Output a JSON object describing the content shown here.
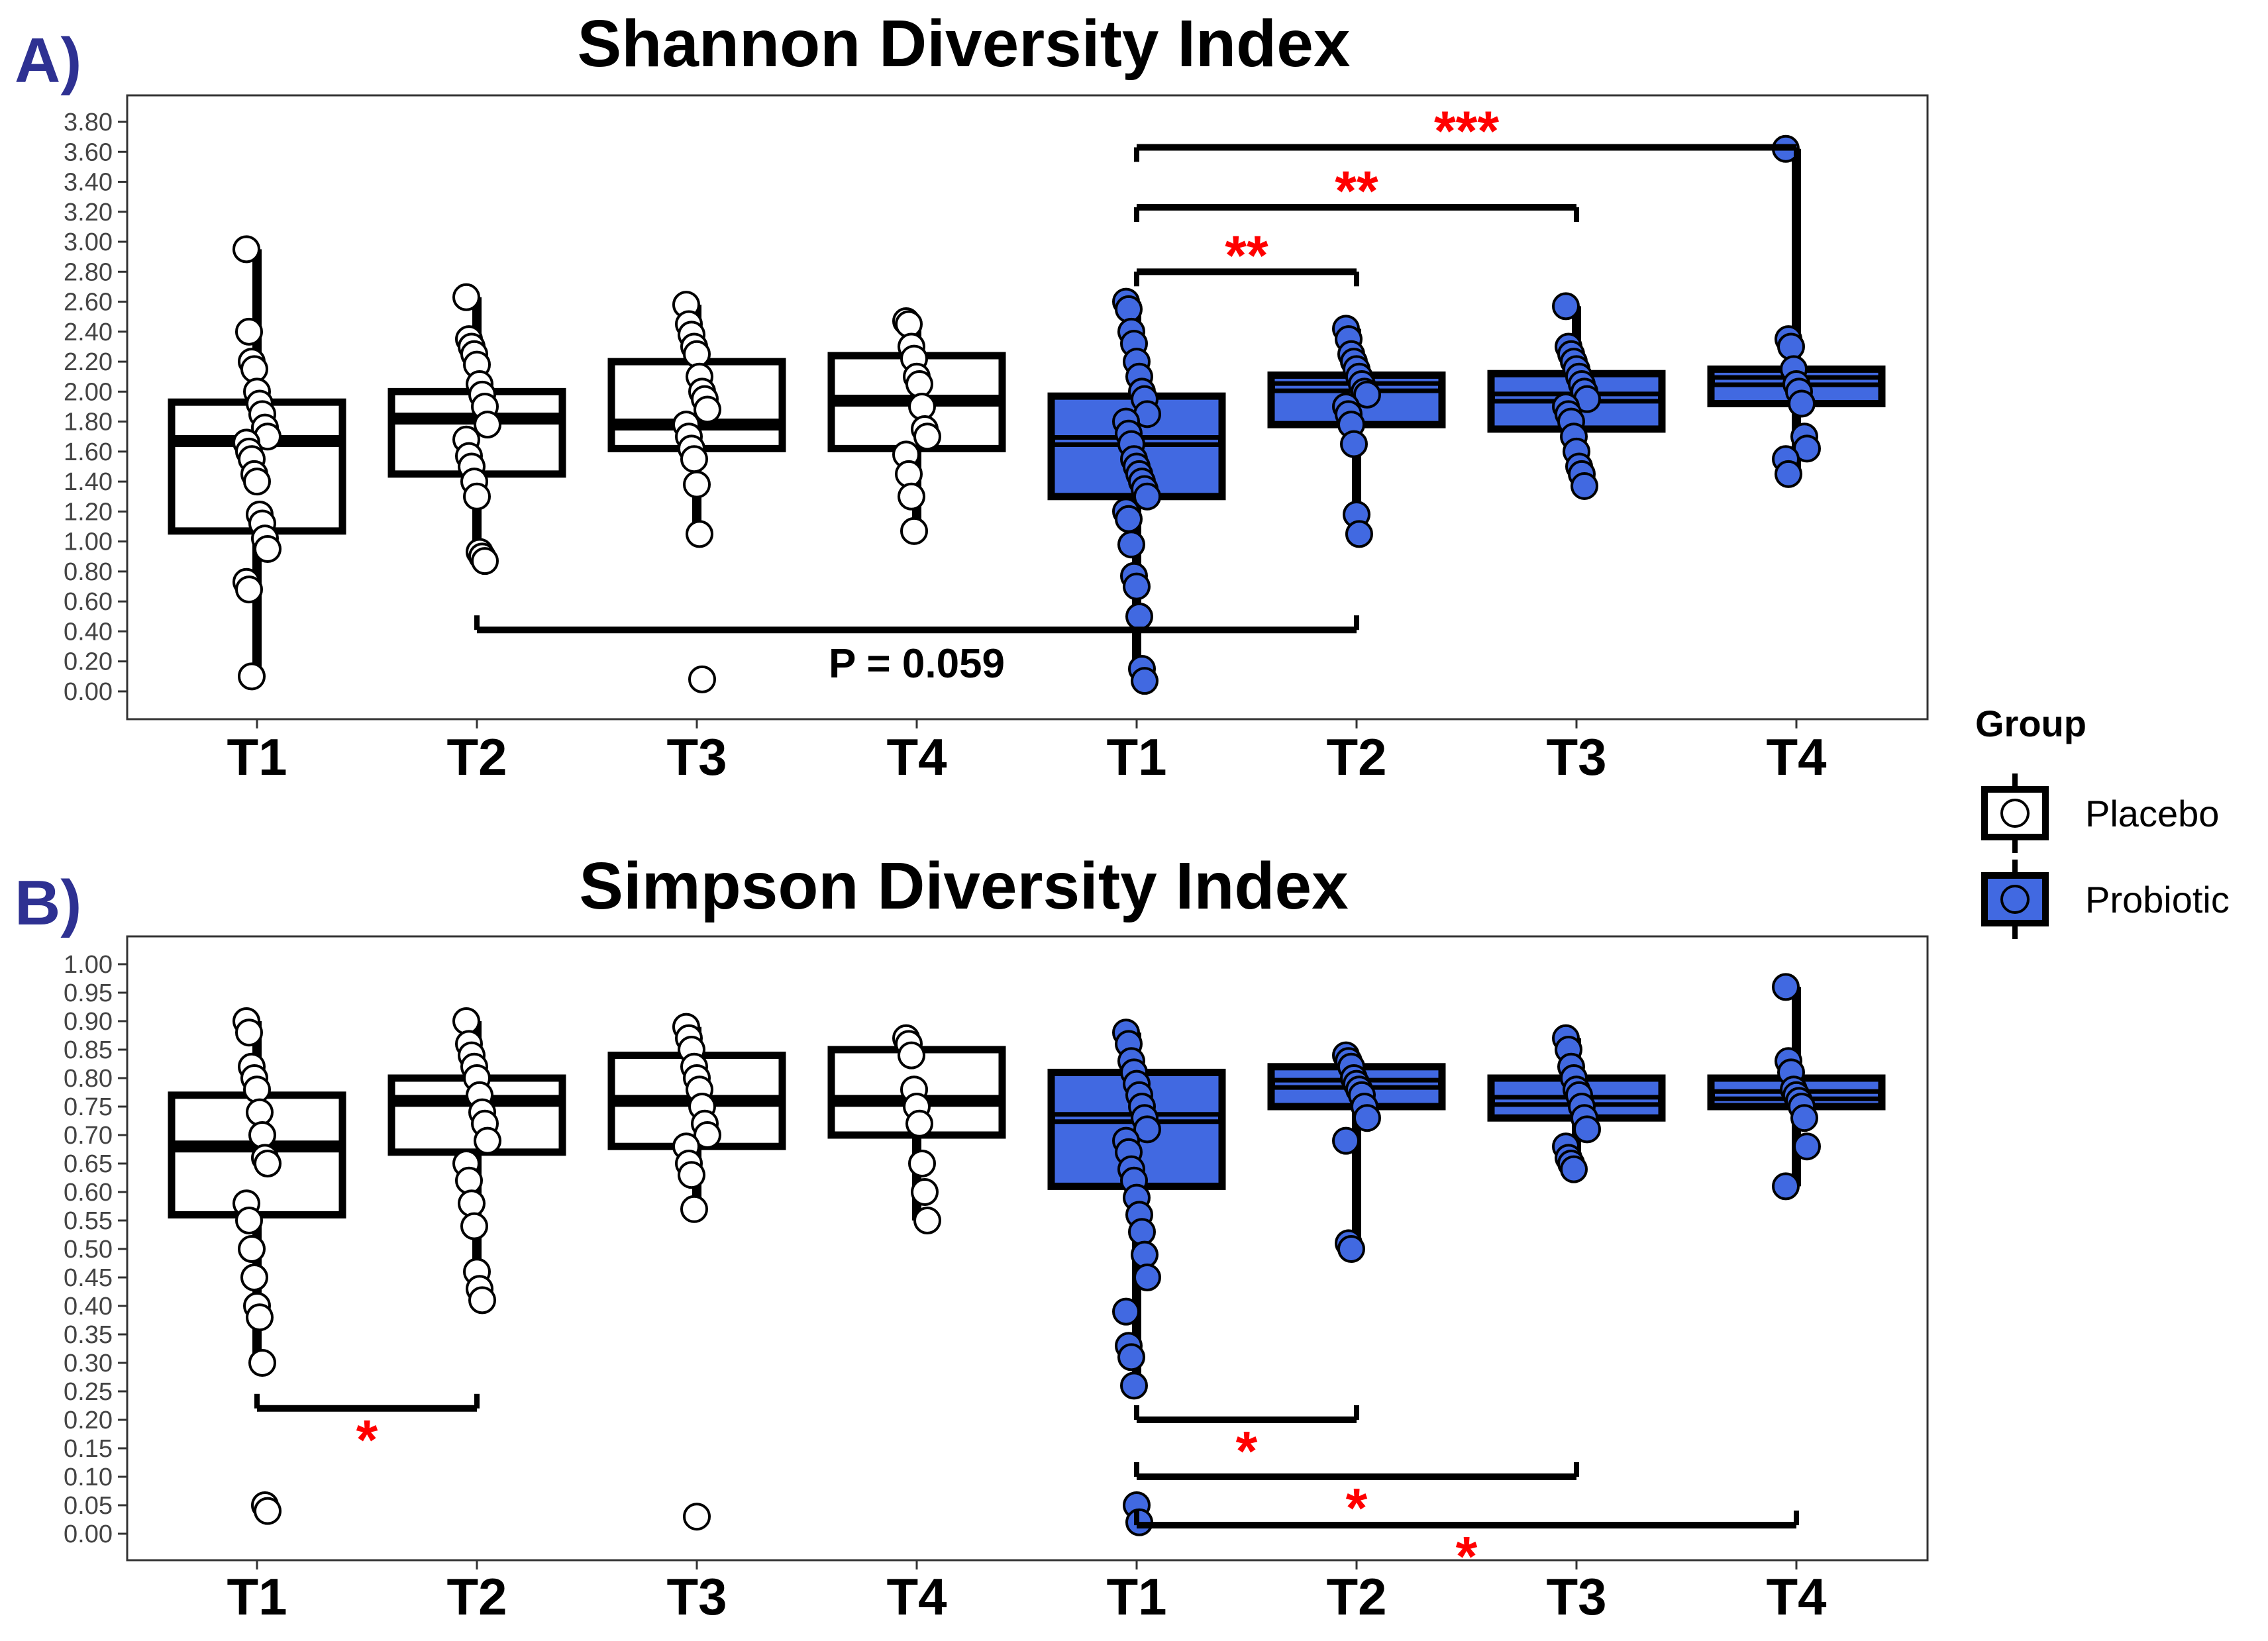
{
  "legend": {
    "title": "Group",
    "items": [
      {
        "label": "Placebo",
        "fill": "#ffffff"
      },
      {
        "label": "Probiotic",
        "fill": "#4169e1"
      }
    ]
  },
  "colors": {
    "placebo": "#ffffff",
    "probiotic": "#4169e1",
    "significance": "#ff0000",
    "panel_letter": "#2e3192"
  },
  "chart_data": [
    {
      "type": "box",
      "panel": "A)",
      "title": "Shannon Diversity Index",
      "ylim": [
        0,
        3.8
      ],
      "ytick_step": 0.2,
      "yticks": [
        "0.00",
        "0.20",
        "0.40",
        "0.60",
        "0.80",
        "1.00",
        "1.20",
        "1.40",
        "1.60",
        "1.80",
        "2.00",
        "2.20",
        "2.40",
        "2.60",
        "2.80",
        "3.00",
        "3.20",
        "3.40",
        "3.60",
        "3.80"
      ],
      "categories": [
        "T1",
        "T2",
        "T3",
        "T4",
        "T1",
        "T2",
        "T3",
        "T4"
      ],
      "groups": [
        "Placebo",
        "Placebo",
        "Placebo",
        "Placebo",
        "Probiotic",
        "Probiotic",
        "Probiotic",
        "Probiotic"
      ],
      "boxes": [
        {
          "q1": 1.07,
          "median": 1.67,
          "q3": 1.93,
          "wlo": 0.1,
          "whi": 2.95
        },
        {
          "q1": 1.45,
          "median": 1.82,
          "q3": 2.0,
          "wlo": 0.87,
          "whi": 2.63
        },
        {
          "q1": 1.62,
          "median": 1.78,
          "q3": 2.2,
          "wlo": 1.05,
          "whi": 2.58
        },
        {
          "q1": 1.62,
          "median": 1.94,
          "q3": 2.24,
          "wlo": 1.07,
          "whi": 2.47
        },
        {
          "q1": 1.3,
          "median": 1.67,
          "q3": 1.97,
          "wlo": 0.07,
          "whi": 2.6
        },
        {
          "q1": 1.78,
          "median": 2.03,
          "q3": 2.11,
          "wlo": 1.05,
          "whi": 2.42
        },
        {
          "q1": 1.75,
          "median": 1.96,
          "q3": 2.12,
          "wlo": 1.37,
          "whi": 2.57
        },
        {
          "q1": 1.92,
          "median": 2.07,
          "q3": 2.15,
          "wlo": 1.45,
          "whi": 3.62
        }
      ],
      "points": [
        [
          2.95,
          2.4,
          2.2,
          2.15,
          2.0,
          1.92,
          1.85,
          1.76,
          1.7,
          1.66,
          1.6,
          1.55,
          1.45,
          1.4,
          1.18,
          1.12,
          1.02,
          0.95,
          0.73,
          0.68,
          0.1
        ],
        [
          2.63,
          2.35,
          2.3,
          2.25,
          2.18,
          2.05,
          1.98,
          1.9,
          1.78,
          1.68,
          1.57,
          1.5,
          1.4,
          1.3,
          0.93,
          0.9,
          0.87
        ],
        [
          2.58,
          2.45,
          2.38,
          2.3,
          2.25,
          2.1,
          2.0,
          1.95,
          1.88,
          1.78,
          1.7,
          1.62,
          1.55,
          1.38,
          1.05,
          0.08
        ],
        [
          2.47,
          2.45,
          2.3,
          2.22,
          2.1,
          2.05,
          1.9,
          1.75,
          1.7,
          1.58,
          1.45,
          1.3,
          1.07
        ],
        [
          2.6,
          2.55,
          2.4,
          2.32,
          2.2,
          2.1,
          2.0,
          1.95,
          1.85,
          1.8,
          1.72,
          1.65,
          1.55,
          1.5,
          1.45,
          1.4,
          1.35,
          1.3,
          1.2,
          1.15,
          0.98,
          0.77,
          0.7,
          0.5,
          0.15,
          0.07
        ],
        [
          2.42,
          2.35,
          2.25,
          2.2,
          2.15,
          2.1,
          2.05,
          2.0,
          1.98,
          1.9,
          1.85,
          1.78,
          1.65,
          1.18,
          1.05
        ],
        [
          2.57,
          2.3,
          2.25,
          2.2,
          2.15,
          2.1,
          2.05,
          2.0,
          1.95,
          1.9,
          1.85,
          1.8,
          1.7,
          1.6,
          1.5,
          1.45,
          1.37
        ],
        [
          3.62,
          2.35,
          2.3,
          2.15,
          2.05,
          2.0,
          1.92,
          1.7,
          1.62,
          1.55,
          1.45
        ]
      ],
      "brackets": [
        {
          "from": 4,
          "to": 7,
          "y": 3.63,
          "label": "***"
        },
        {
          "from": 4,
          "to": 6,
          "y": 3.23,
          "label": "**"
        },
        {
          "from": 4,
          "to": 5,
          "y": 2.8,
          "label": "**"
        },
        {
          "from": 1,
          "to": 5,
          "y": 0.41,
          "label": "P = 0.059",
          "below": true
        }
      ]
    },
    {
      "type": "box",
      "panel": "B)",
      "title": "Simpson Diversity Index",
      "ylim": [
        0,
        1.0
      ],
      "ytick_step": 0.05,
      "yticks": [
        "0.00",
        "0.05",
        "0.10",
        "0.15",
        "0.20",
        "0.25",
        "0.30",
        "0.35",
        "0.40",
        "0.45",
        "0.50",
        "0.55",
        "0.60",
        "0.65",
        "0.70",
        "0.75",
        "0.80",
        "0.85",
        "0.90",
        "0.95",
        "1.00"
      ],
      "categories": [
        "T1",
        "T2",
        "T3",
        "T4",
        "T1",
        "T2",
        "T3",
        "T4"
      ],
      "groups": [
        "Placebo",
        "Placebo",
        "Placebo",
        "Placebo",
        "Probiotic",
        "Probiotic",
        "Probiotic",
        "Probiotic"
      ],
      "boxes": [
        {
          "q1": 0.56,
          "median": 0.68,
          "q3": 0.77,
          "wlo": 0.3,
          "whi": 0.9
        },
        {
          "q1": 0.67,
          "median": 0.76,
          "q3": 0.8,
          "wlo": 0.41,
          "whi": 0.9
        },
        {
          "q1": 0.68,
          "median": 0.76,
          "q3": 0.84,
          "wlo": 0.57,
          "whi": 0.89
        },
        {
          "q1": 0.7,
          "median": 0.76,
          "q3": 0.85,
          "wlo": 0.55,
          "whi": 0.87
        },
        {
          "q1": 0.61,
          "median": 0.73,
          "q3": 0.81,
          "wlo": 0.26,
          "whi": 0.88
        },
        {
          "q1": 0.75,
          "median": 0.79,
          "q3": 0.82,
          "wlo": 0.5,
          "whi": 0.84
        },
        {
          "q1": 0.73,
          "median": 0.76,
          "q3": 0.8,
          "wlo": 0.64,
          "whi": 0.87
        },
        {
          "q1": 0.75,
          "median": 0.77,
          "q3": 0.8,
          "wlo": 0.61,
          "whi": 0.96
        }
      ],
      "points": [
        [
          0.9,
          0.88,
          0.82,
          0.8,
          0.78,
          0.74,
          0.7,
          0.66,
          0.65,
          0.58,
          0.55,
          0.5,
          0.45,
          0.4,
          0.38,
          0.3,
          0.05,
          0.04
        ],
        [
          0.9,
          0.86,
          0.84,
          0.82,
          0.8,
          0.77,
          0.74,
          0.72,
          0.69,
          0.65,
          0.62,
          0.58,
          0.54,
          0.46,
          0.43,
          0.41
        ],
        [
          0.89,
          0.87,
          0.85,
          0.82,
          0.8,
          0.78,
          0.75,
          0.72,
          0.7,
          0.68,
          0.65,
          0.63,
          0.57,
          0.03
        ],
        [
          0.87,
          0.86,
          0.84,
          0.78,
          0.75,
          0.72,
          0.65,
          0.6,
          0.55
        ],
        [
          0.88,
          0.86,
          0.83,
          0.81,
          0.79,
          0.77,
          0.75,
          0.73,
          0.71,
          0.69,
          0.67,
          0.64,
          0.62,
          0.59,
          0.56,
          0.53,
          0.49,
          0.45,
          0.39,
          0.33,
          0.31,
          0.26,
          0.05,
          0.02
        ],
        [
          0.84,
          0.83,
          0.82,
          0.8,
          0.79,
          0.78,
          0.77,
          0.75,
          0.73,
          0.69,
          0.51,
          0.5
        ],
        [
          0.87,
          0.85,
          0.82,
          0.8,
          0.78,
          0.77,
          0.75,
          0.73,
          0.71,
          0.68,
          0.66,
          0.65,
          0.64
        ],
        [
          0.96,
          0.83,
          0.81,
          0.78,
          0.77,
          0.76,
          0.75,
          0.73,
          0.68,
          0.61
        ]
      ],
      "brackets": [
        {
          "from": 0,
          "to": 1,
          "y": 0.22,
          "label": "*",
          "below": true
        },
        {
          "from": 4,
          "to": 5,
          "y": 0.2,
          "label": "*",
          "below": true
        },
        {
          "from": 4,
          "to": 6,
          "y": 0.1,
          "label": "*",
          "below": true
        },
        {
          "from": 4,
          "to": 7,
          "y": 0.015,
          "label": "*",
          "below": true
        }
      ]
    }
  ]
}
